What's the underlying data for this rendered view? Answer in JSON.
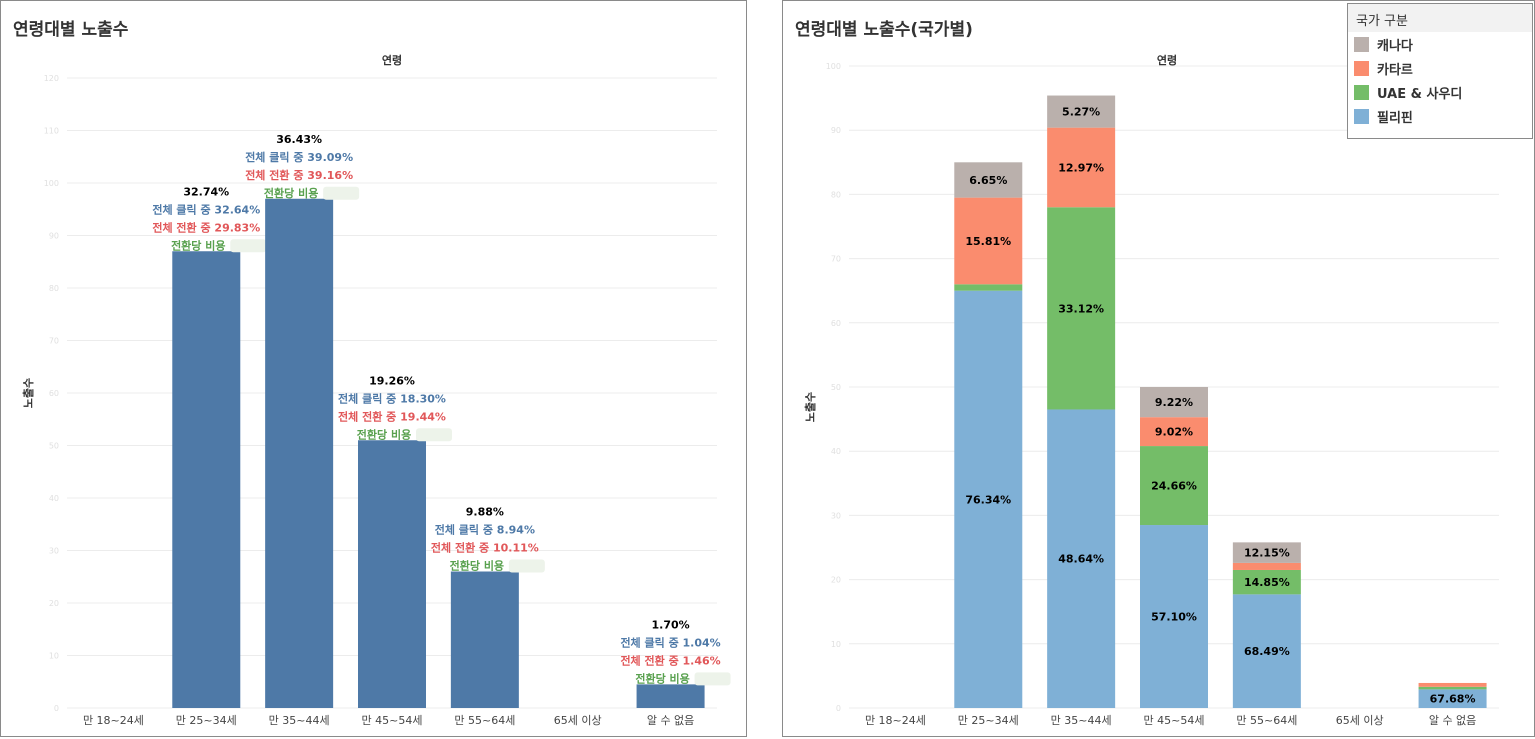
{
  "colors": {
    "bar": "#4e79a7",
    "click": "#4e79a7",
    "conv": "#e15759",
    "cost": "#59a14f",
    "pct": "#000000",
    "grid": "#ececec",
    "axis_text": "#444444",
    "tick_text": "#e0e0e0"
  },
  "left": {
    "title": "연령대별 노출수",
    "chart_data": {
      "type": "bar",
      "title": "연령대별 노출수",
      "column_header": "연령",
      "ylabel": "노출수",
      "ylim": [
        0,
        12
      ],
      "categories": [
        "만 18~24세",
        "만 25~34세",
        "만 35~44세",
        "만 45~54세",
        "만 55~64세",
        "65세 이상",
        "알 수 없음"
      ],
      "values": [
        0,
        8.7,
        9.7,
        5.1,
        2.6,
        0,
        0.45
      ],
      "labels": [
        null,
        {
          "pct": "32.74%",
          "click": "전체 클릭 중 32.64%",
          "conv": "전체 전환 중 29.83%",
          "cost": "전환당 비용"
        },
        {
          "pct": "36.43%",
          "click": "전체 클릭 중 39.09%",
          "conv": "전체 전환 중 39.16%",
          "cost": "전환당 비용"
        },
        {
          "pct": "19.26%",
          "click": "전체 클릭 중 18.30%",
          "conv": "전체 전환 중 19.44%",
          "cost": "전환당 비용"
        },
        {
          "pct": "9.88%",
          "click": "전체 클릭 중 8.94%",
          "conv": "전체 전환 중 10.11%",
          "cost": "전환당 비용"
        },
        null,
        {
          "pct": "1.70%",
          "click": "전체 클릭 중 1.04%",
          "conv": "전체 전환 중 1.46%",
          "cost": "전환당 비용"
        }
      ]
    }
  },
  "right": {
    "title": "연령대별 노출수(국가별)",
    "legend": {
      "title": "국가 구분",
      "items": [
        {
          "name": "캐나다",
          "color": "#bab0ac"
        },
        {
          "name": "카타르",
          "color": "#fa8c6e"
        },
        {
          "name": "UAE & 사우디",
          "color": "#74bd68"
        },
        {
          "name": "필리핀",
          "color": "#7fb0d6"
        }
      ]
    },
    "chart_data": {
      "type": "bar",
      "stacked": true,
      "title": "연령대별 노출수(국가별)",
      "column_header": "연령",
      "ylabel": "노출수",
      "ylim": [
        0,
        10
      ],
      "categories": [
        "만 18~24세",
        "만 25~34세",
        "만 35~44세",
        "만 45~54세",
        "만 55~64세",
        "65세 이상",
        "알 수 없음"
      ],
      "series": [
        {
          "name": "필리핀",
          "values": [
            0,
            6.5,
            4.65,
            2.85,
            1.77,
            0,
            0.29
          ],
          "labels": [
            null,
            "76.34%",
            "48.64%",
            "57.10%",
            "68.49%",
            null,
            "67.68%"
          ]
        },
        {
          "name": "UAE & 사우디",
          "values": [
            0,
            0.1,
            3.15,
            1.23,
            0.38,
            0,
            0.04
          ],
          "labels": [
            null,
            null,
            "33.12%",
            "24.66%",
            "14.85%",
            null,
            null
          ]
        },
        {
          "name": "카타르",
          "values": [
            0,
            1.35,
            1.24,
            0.45,
            0.11,
            0,
            0.06
          ],
          "labels": [
            null,
            "15.81%",
            "12.97%",
            "9.02%",
            null,
            null,
            null
          ]
        },
        {
          "name": "캐나다",
          "values": [
            0,
            0.55,
            0.5,
            0.47,
            0.32,
            0,
            0
          ],
          "labels": [
            null,
            "6.65%",
            "5.27%",
            "9.22%",
            "12.15%",
            null,
            null
          ]
        }
      ]
    }
  }
}
